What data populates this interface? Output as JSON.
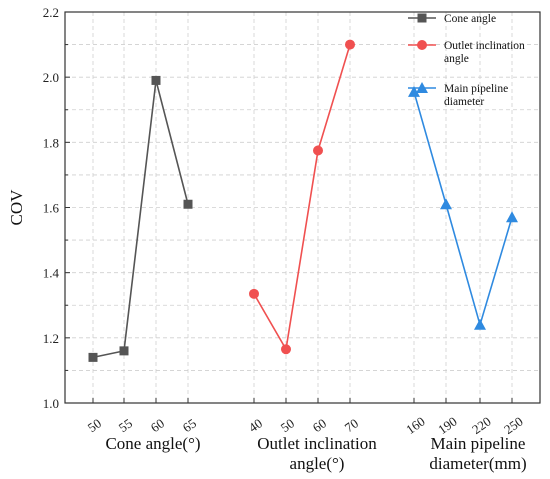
{
  "chart_data": {
    "type": "line",
    "ylabel": "COV",
    "ylim": [
      1.0,
      2.2
    ],
    "yticks": [
      1.0,
      1.2,
      1.4,
      1.6,
      1.8,
      2.0,
      2.2
    ],
    "grid": true,
    "legend_position": "top-right",
    "groups": [
      {
        "xlabel": [
          "Cone angle(°)"
        ],
        "categories": [
          "50",
          "55",
          "60",
          "65"
        ]
      },
      {
        "xlabel": [
          "Outlet inclination",
          "angle(°)"
        ],
        "categories": [
          "40",
          "50",
          "60",
          "70"
        ]
      },
      {
        "xlabel": [
          "Main pipeline",
          "diameter(mm)"
        ],
        "categories": [
          "160",
          "190",
          "220",
          "250"
        ]
      }
    ],
    "series": [
      {
        "name": [
          "Cone angle"
        ],
        "group": 0,
        "marker": "square",
        "color": "#555555",
        "values": [
          1.14,
          1.16,
          1.99,
          1.61
        ]
      },
      {
        "name": [
          "Outlet inclination",
          "angle"
        ],
        "group": 1,
        "marker": "circle",
        "color": "#f05050",
        "values": [
          1.335,
          1.165,
          1.775,
          2.1
        ]
      },
      {
        "name": [
          "Main pipeline",
          "diameter"
        ],
        "group": 2,
        "marker": "triangle",
        "color": "#2f8ae0",
        "values": [
          1.955,
          1.61,
          1.24,
          1.57
        ]
      }
    ]
  }
}
